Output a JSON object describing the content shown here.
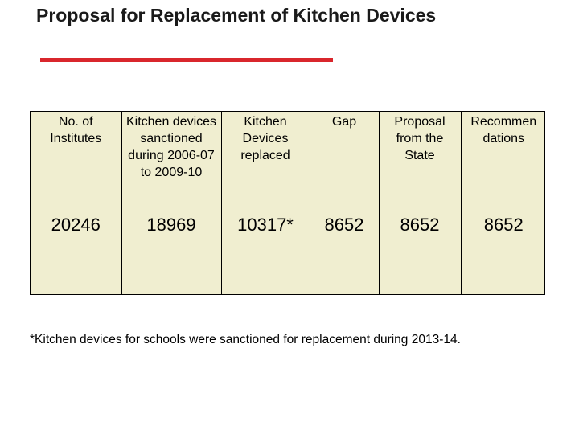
{
  "title": "Proposal for Replacement of Kitchen Devices",
  "table": {
    "headers": [
      "No. of Institutes",
      "Kitchen devices sanctioned during 2006-07 to 2009-10",
      "Kitchen Devices replaced",
      "Gap",
      "Proposal from the State",
      "Recommen dations"
    ],
    "row": [
      "20246",
      "18969",
      "10317*",
      "8652",
      "8652",
      "8652"
    ]
  },
  "footnote": "*Kitchen devices for schools were sanctioned for replacement during 2013-14.",
  "colors": {
    "accent_red": "#d9262c",
    "table_background": "#f0eed0"
  }
}
